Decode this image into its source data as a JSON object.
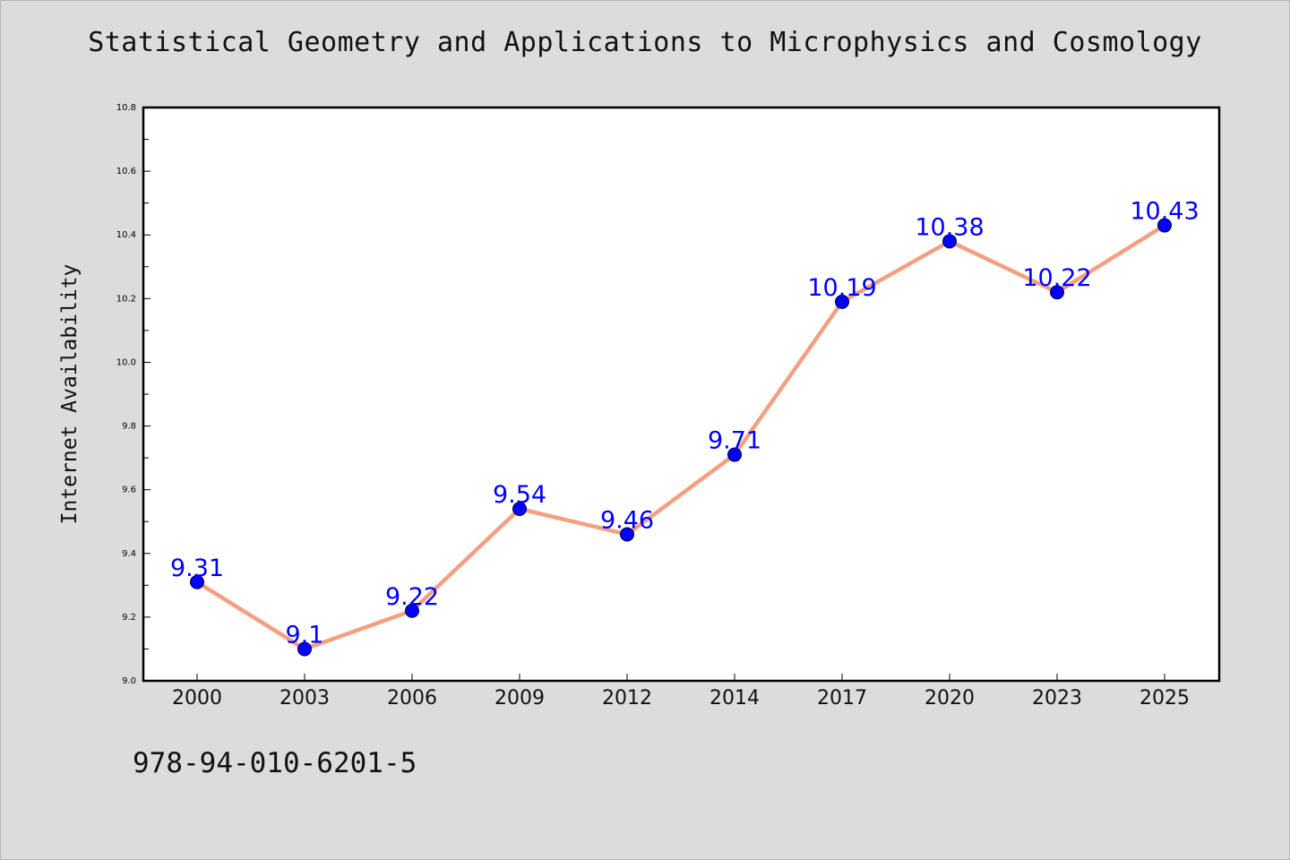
{
  "title": "Statistical Geometry and Applications to Microphysics and Cosmology",
  "footer_text": "978-94-010-6201-5",
  "chart_data": {
    "type": "line",
    "title": "Statistical Geometry and Applications to Microphysics and Cosmology",
    "xlabel": "",
    "ylabel": "Internet Availability",
    "categories": [
      "2000",
      "2003",
      "2006",
      "2009",
      "2012",
      "2014",
      "2017",
      "2020",
      "2023",
      "2025"
    ],
    "series": [
      {
        "values": [
          9.31,
          9.1,
          9.22,
          9.54,
          9.46,
          9.71,
          10.19,
          10.38,
          10.22,
          10.43
        ],
        "data_labels": [
          "9.31",
          "9.1",
          "9.22",
          "9.54",
          "9.46",
          "9.71",
          "10.19",
          "10.38",
          "10.22",
          "10.43"
        ],
        "line_color": "#f4a080",
        "marker_color": "#0000ff"
      }
    ],
    "ylim": [
      9.0,
      10.8
    ],
    "yticks": [
      "9.0",
      "9.2",
      "9.4",
      "9.6",
      "9.8",
      "10.0",
      "10.2",
      "10.4",
      "10.6",
      "10.8"
    ],
    "grid": false,
    "label_color": "#0000ff"
  }
}
